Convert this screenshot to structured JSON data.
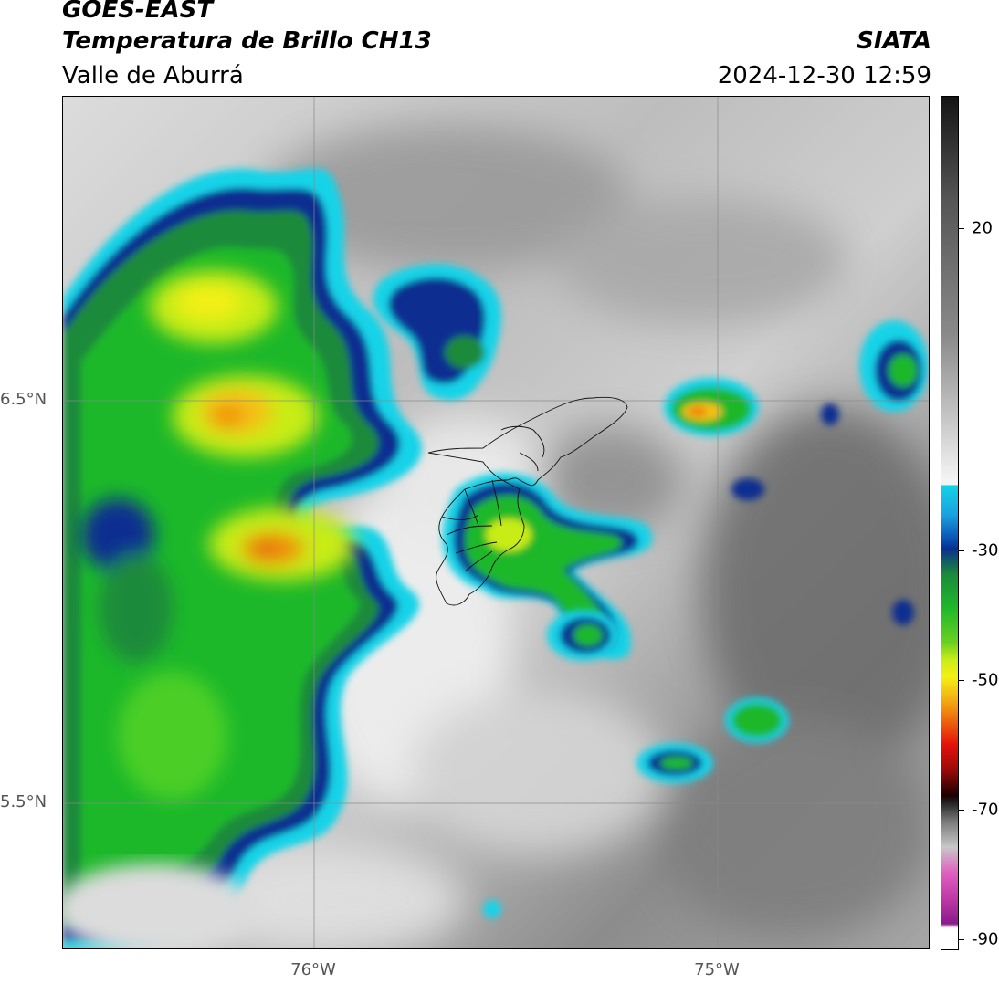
{
  "header": {
    "satellite": "GOES-EAST",
    "product": "Temperatura de Brillo CH13",
    "region": "Valle de Aburrá",
    "agency": "SIATA",
    "timestamp": "2024-12-30 12:59"
  },
  "axes": {
    "latitude_labels": [
      "6.5°N",
      "5.5°N"
    ],
    "longitude_labels": [
      "76°W",
      "75°W"
    ]
  },
  "colorbar": {
    "tick_labels": [
      "20",
      "-30",
      "-50",
      "-70",
      "-90"
    ],
    "colors": {
      "warm_gray_dark": "#1a1a1a",
      "warm_gray_light": "#f4f4f4",
      "cyan": "#12d3e8",
      "blue": "#0a2f90",
      "green": "#1fb82a",
      "yellow": "#f4f014",
      "orange": "#f08a10",
      "red": "#e4120a",
      "black": "#1a0000",
      "magenta": "#e060c0",
      "purple": "#8a1a8a"
    }
  },
  "map": {
    "background_colors": {
      "cloud_free_light": "#e8e8e8",
      "cloud_free_mid": "#b4b4b4",
      "cloud_free_dark": "#7a7a7a"
    }
  }
}
